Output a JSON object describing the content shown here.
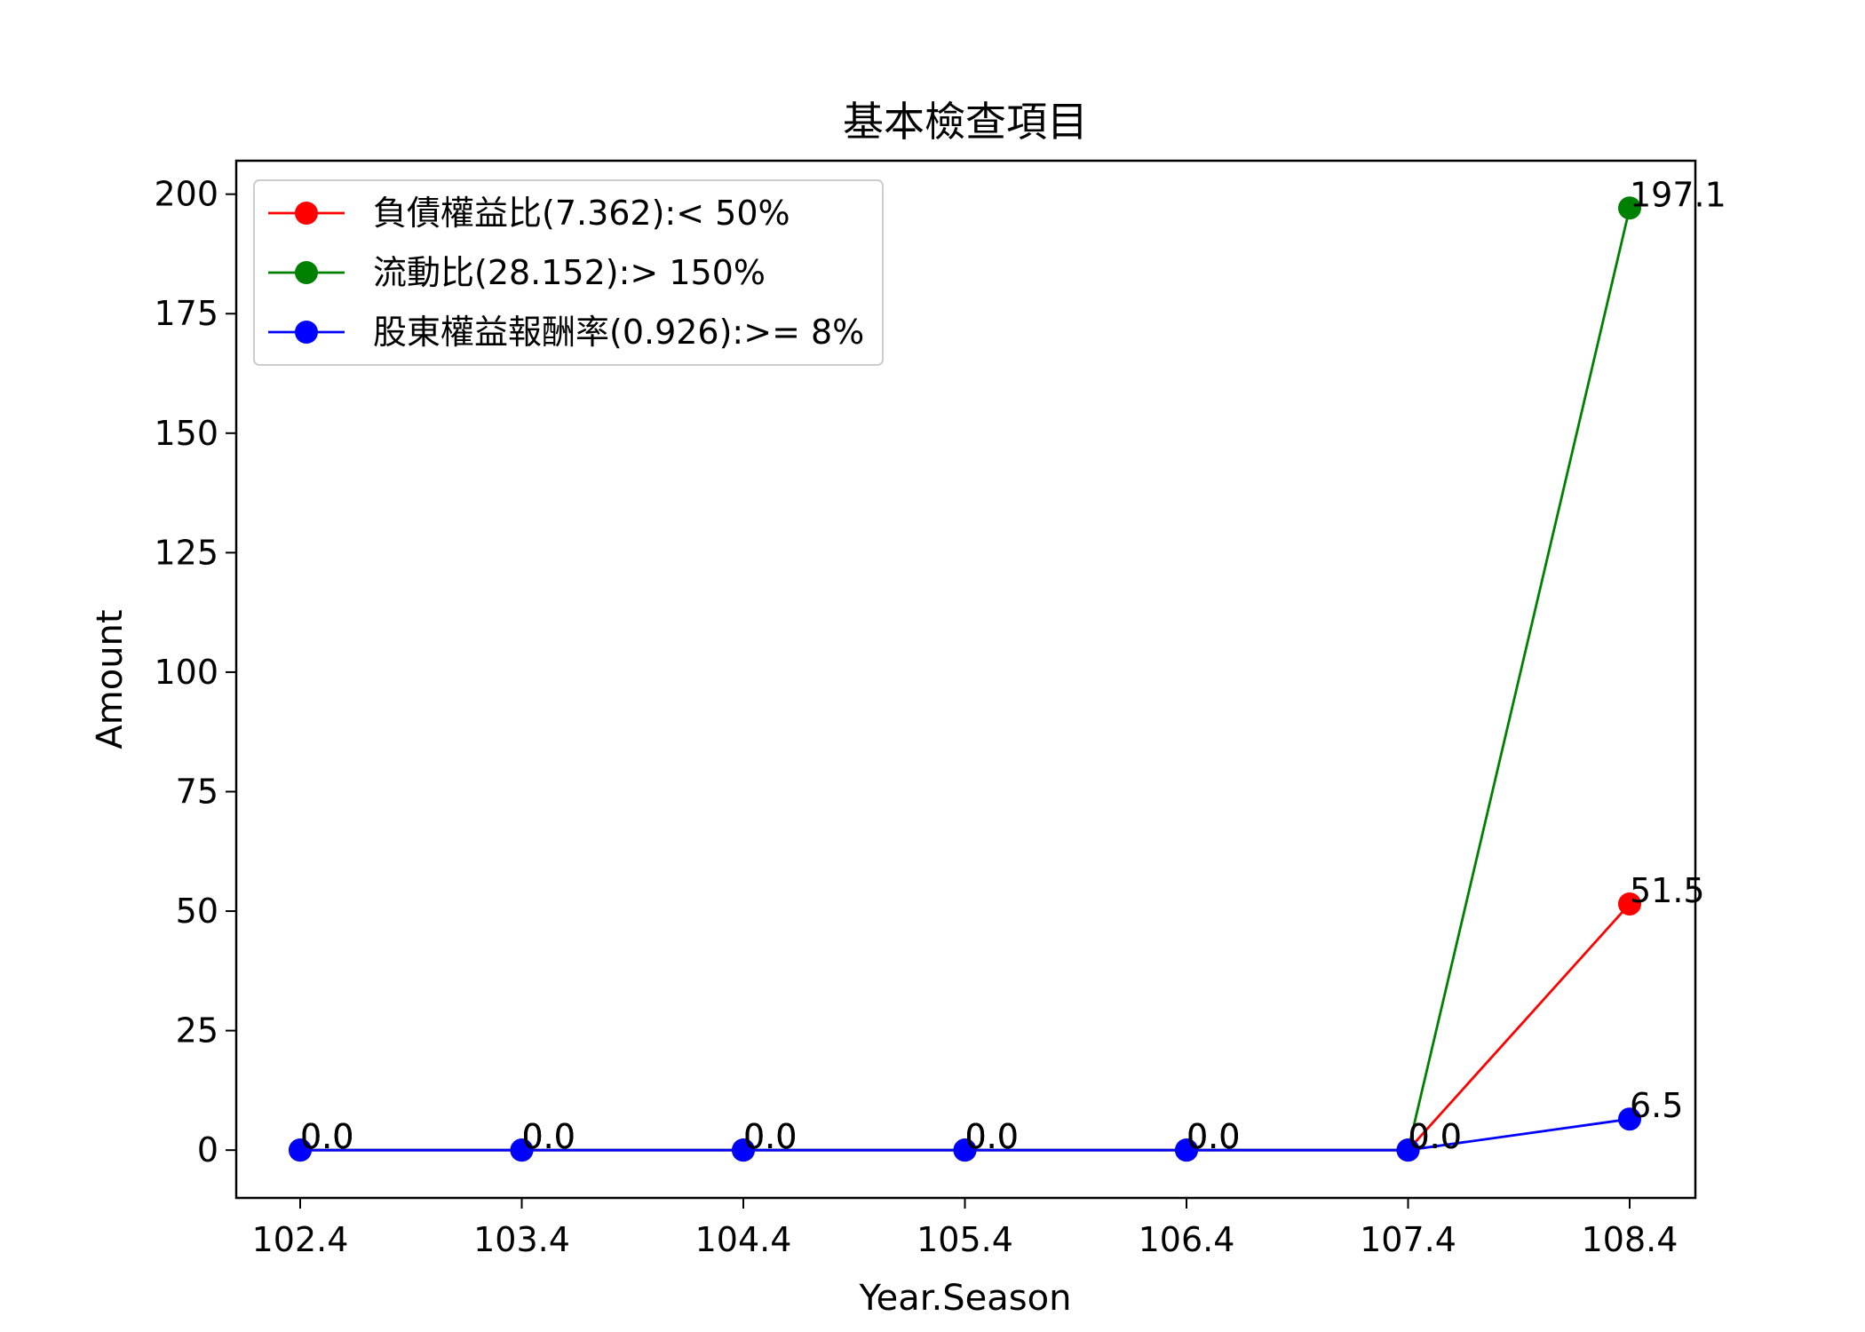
{
  "chart_data": {
    "type": "line",
    "title": "基本檢查項目",
    "xlabel": "Year.Season",
    "ylabel": "Amount",
    "categories": [
      "102.4",
      "103.4",
      "104.4",
      "105.4",
      "106.4",
      "107.4",
      "108.4"
    ],
    "ylim": [
      -10,
      207
    ],
    "yticks": [
      0,
      25,
      50,
      75,
      100,
      125,
      150,
      175,
      200
    ],
    "grid": false,
    "legend_position": "top-left",
    "series": [
      {
        "name": "負債權益比(7.362):< 50%",
        "color": "#ff0000",
        "values": [
          0.0,
          0.0,
          0.0,
          0.0,
          0.0,
          0.0,
          51.5
        ],
        "labels": [
          "0.0",
          "0.0",
          "0.0",
          "0.0",
          "0.0",
          "0.0",
          "51.5"
        ]
      },
      {
        "name": "流動比(28.152):> 150%",
        "color": "#008000",
        "values": [
          0.0,
          0.0,
          0.0,
          0.0,
          0.0,
          0.0,
          197.1
        ],
        "labels": [
          "0.0",
          "0.0",
          "0.0",
          "0.0",
          "0.0",
          "0.0",
          "197.1"
        ]
      },
      {
        "name": "股東權益報酬率(0.926):>= 8%",
        "color": "#0000ff",
        "values": [
          0.0,
          0.0,
          0.0,
          0.0,
          0.0,
          0.0,
          6.5
        ],
        "labels": [
          "0.0",
          "0.0",
          "0.0",
          "0.0",
          "0.0",
          "0.0",
          "6.5"
        ]
      }
    ]
  }
}
